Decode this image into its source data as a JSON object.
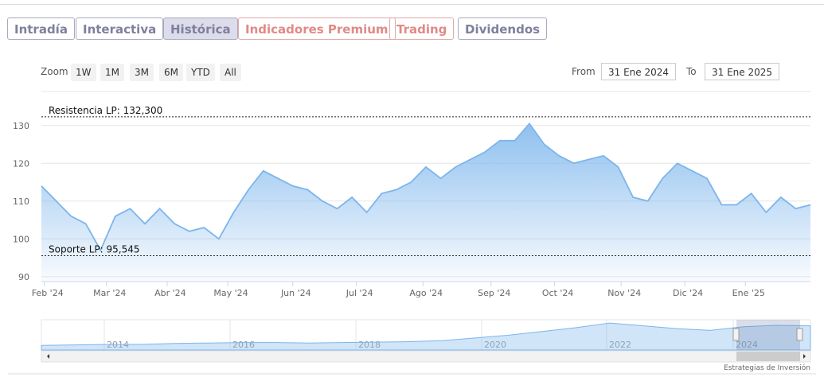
{
  "tabs": [
    "Intradía",
    "Interactiva",
    "Histórica",
    "Indicadores Premium",
    "Trading",
    "Dividendos"
  ],
  "zoom": {
    "label": "Zoom",
    "buttons": [
      "1W",
      "1M",
      "3M",
      "6M",
      "YTD",
      "All"
    ]
  },
  "range": {
    "from_label": "From",
    "from": "31 Ene 2024",
    "to_label": "To",
    "to": "31 Ene 2025"
  },
  "credit": "Estrategias de Inversión",
  "chart_data": {
    "type": "area",
    "color": "#7cb5ec",
    "values": [
      114,
      110,
      106,
      104,
      97,
      106,
      108,
      104,
      108,
      104,
      102,
      103,
      100,
      107,
      113,
      118,
      116,
      114,
      113,
      110,
      108,
      111,
      107,
      112,
      113,
      115,
      119,
      116,
      119,
      121,
      123,
      126,
      126,
      130.5,
      125,
      122,
      120,
      121,
      122,
      119,
      111,
      110,
      116,
      120,
      118,
      116,
      109,
      109,
      112,
      107,
      111,
      108,
      109
    ],
    "xlim": [
      0,
      52
    ],
    "xticks": [
      {
        "value": 0.2,
        "label": "Feb '24"
      },
      {
        "value": 4.4,
        "label": "Mar '24"
      },
      {
        "value": 8.5,
        "label": "Abr '24"
      },
      {
        "value": 12.6,
        "label": "May '24"
      },
      {
        "value": 17.0,
        "label": "Jun '24"
      },
      {
        "value": 21.3,
        "label": "Jul '24"
      },
      {
        "value": 25.8,
        "label": "Ago '24"
      },
      {
        "value": 30.4,
        "label": "Sep '24"
      },
      {
        "value": 34.7,
        "label": "Oct '24"
      },
      {
        "value": 39.2,
        "label": "Nov '24"
      },
      {
        "value": 43.5,
        "label": "Dic '24"
      },
      {
        "value": 47.6,
        "label": "Ene '25"
      }
    ],
    "ylim": [
      88.7,
      139
    ],
    "yticks": [
      90,
      100,
      110,
      120,
      130
    ],
    "grid": true,
    "annotations": [
      {
        "value": 132.3,
        "label": "Resistencia LP: 132,300"
      },
      {
        "value": 95.545,
        "label": "Soporte LP: 95,545"
      }
    ],
    "navigator": {
      "labels": [
        "2014",
        "2016",
        "2018",
        "2020",
        "2022",
        "2024"
      ],
      "values": [
        70,
        71,
        72,
        72,
        74,
        75,
        76,
        76,
        75,
        76,
        77,
        78,
        80,
        86,
        92,
        100,
        108,
        118,
        112,
        106,
        102,
        110,
        113,
        112
      ],
      "ylim": [
        60,
        125
      ]
    }
  }
}
